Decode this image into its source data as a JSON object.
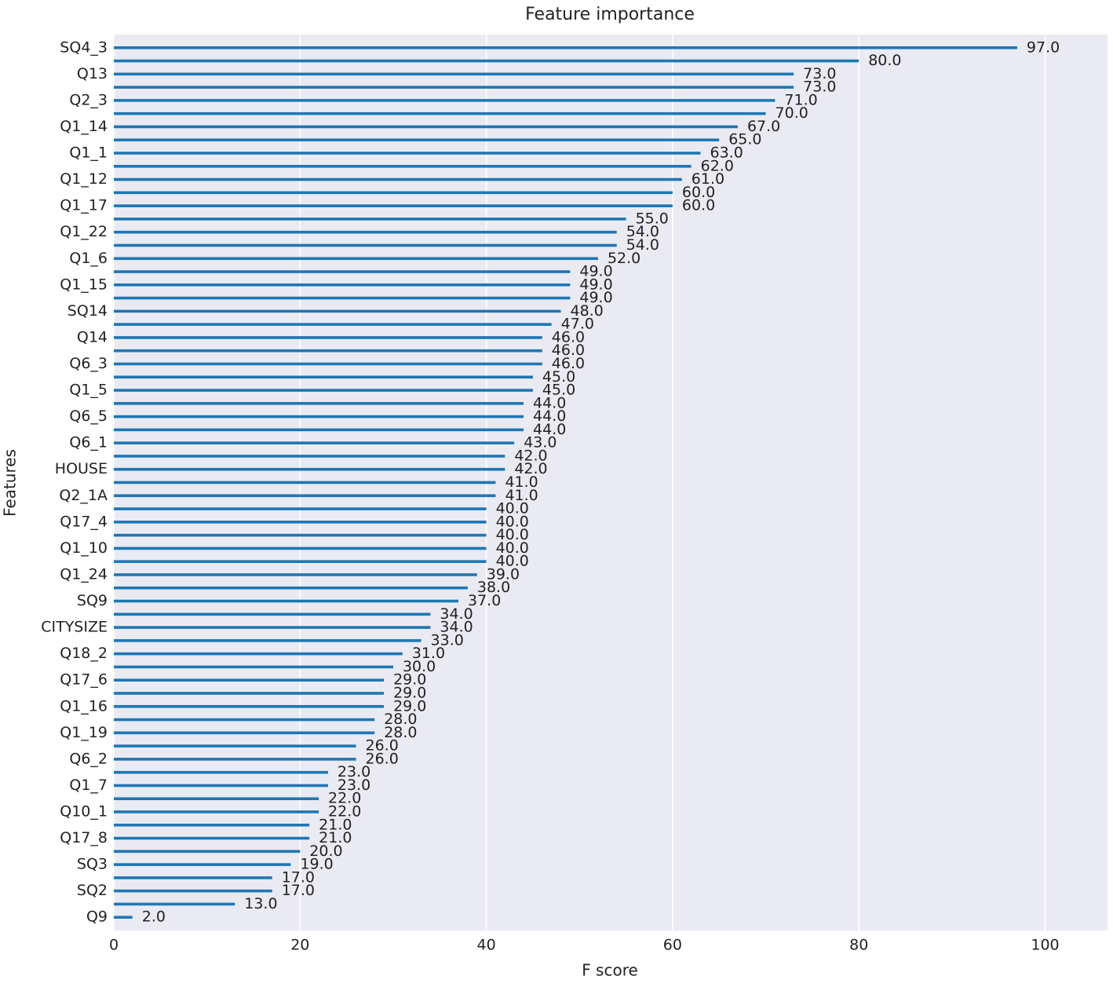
{
  "chart_data": {
    "type": "barh",
    "title": "Feature importance",
    "x_label": "F score",
    "y_label": "Features",
    "categories": [
      "SQ4_3",
      null,
      "Q13",
      null,
      "Q2_3",
      null,
      "Q1_14",
      null,
      "Q1_1",
      null,
      "Q1_12",
      null,
      "Q1_17",
      null,
      "Q1_22",
      null,
      "Q1_6",
      null,
      "Q1_15",
      null,
      "SQ14",
      null,
      "Q14",
      null,
      "Q6_3",
      null,
      "Q1_5",
      null,
      "Q6_5",
      null,
      "Q6_1",
      null,
      "HOUSE",
      null,
      "Q2_1A",
      null,
      "Q17_4",
      null,
      "Q1_10",
      null,
      "Q1_24",
      null,
      "SQ9",
      null,
      "CITYSIZE",
      null,
      "Q18_2",
      null,
      "Q17_6",
      null,
      "Q1_16",
      null,
      "Q1_19",
      null,
      "Q6_2",
      null,
      "Q1_7",
      null,
      "Q10_1",
      null,
      "Q17_8",
      null,
      "SQ3",
      null,
      "SQ2",
      null,
      "Q9"
    ],
    "values": [
      97,
      80,
      73,
      73,
      71,
      70,
      67,
      65,
      63,
      62,
      61,
      60,
      60,
      55,
      54,
      54,
      52,
      49,
      49,
      49,
      48,
      47,
      46,
      46,
      46,
      45,
      45,
      44,
      44,
      44,
      43,
      42,
      42,
      41,
      41,
      40,
      40,
      40,
      40,
      40,
      39,
      38,
      37,
      34,
      34,
      33,
      31,
      30,
      29,
      29,
      29,
      28,
      28,
      26,
      26,
      23,
      23,
      22,
      22,
      21,
      21,
      20,
      19,
      17,
      17,
      13,
      2
    ],
    "value_labels": [
      "97.0",
      "80.0",
      "73.0",
      "73.0",
      "71.0",
      "70.0",
      "67.0",
      "65.0",
      "63.0",
      "62.0",
      "61.0",
      "60.0",
      "60.0",
      "55.0",
      "54.0",
      "54.0",
      "52.0",
      "49.0",
      "49.0",
      "49.0",
      "48.0",
      "47.0",
      "46.0",
      "46.0",
      "46.0",
      "45.0",
      "45.0",
      "44.0",
      "44.0",
      "44.0",
      "43.0",
      "42.0",
      "42.0",
      "41.0",
      "41.0",
      "40.0",
      "40.0",
      "40.0",
      "40.0",
      "40.0",
      "39.0",
      "38.0",
      "37.0",
      "34.0",
      "34.0",
      "33.0",
      "31.0",
      "30.0",
      "29.0",
      "29.0",
      "29.0",
      "28.0",
      "28.0",
      "26.0",
      "26.0",
      "23.0",
      "23.0",
      "22.0",
      "22.0",
      "21.0",
      "21.0",
      "20.0",
      "19.0",
      "17.0",
      "17.0",
      "13.0",
      "2.0"
    ],
    "color": "#1f77b4",
    "xlim": [
      0,
      106.7
    ],
    "xticks": [
      0,
      20,
      40,
      60,
      80,
      100
    ],
    "grid": true
  }
}
